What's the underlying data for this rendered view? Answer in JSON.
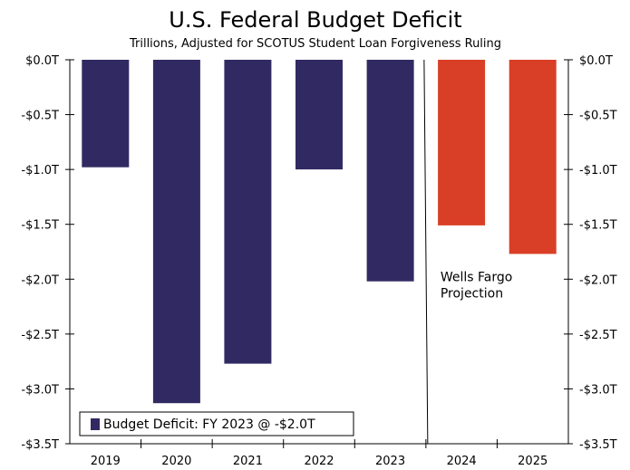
{
  "chart_data": {
    "type": "bar",
    "title": "U.S. Federal Budget Deficit",
    "subtitle": "Trillions, Adjusted for SCOTUS Student Loan Forgiveness Ruling",
    "categories": [
      "2019",
      "2020",
      "2021",
      "2022",
      "2023",
      "2024",
      "2025"
    ],
    "values": [
      -0.98,
      -3.13,
      -2.77,
      -1.0,
      -2.02,
      -1.51,
      -1.77
    ],
    "bar_colors": [
      "#312a62",
      "#312a62",
      "#312a62",
      "#312a62",
      "#312a62",
      "#d93f26",
      "#d93f26"
    ],
    "ylim": [
      -3.5,
      0.0
    ],
    "yticks": [
      0.0,
      -0.5,
      -1.0,
      -1.5,
      -2.0,
      -2.5,
      -3.0,
      -3.5
    ],
    "ytick_labels": [
      "$0.0T",
      "-$0.5T",
      "-$1.0T",
      "-$1.5T",
      "-$2.0T",
      "-$2.5T",
      "-$3.0T",
      "-$3.5T"
    ],
    "legend": {
      "label": "Budget Deficit: FY 2023 @ -$2.0T",
      "color": "#312a62",
      "placement": "bottom-left"
    },
    "annotation": {
      "text_line1": "Wells Fargo",
      "text_line2": "Projection"
    },
    "grid": false,
    "xlabel": "",
    "ylabel": ""
  }
}
